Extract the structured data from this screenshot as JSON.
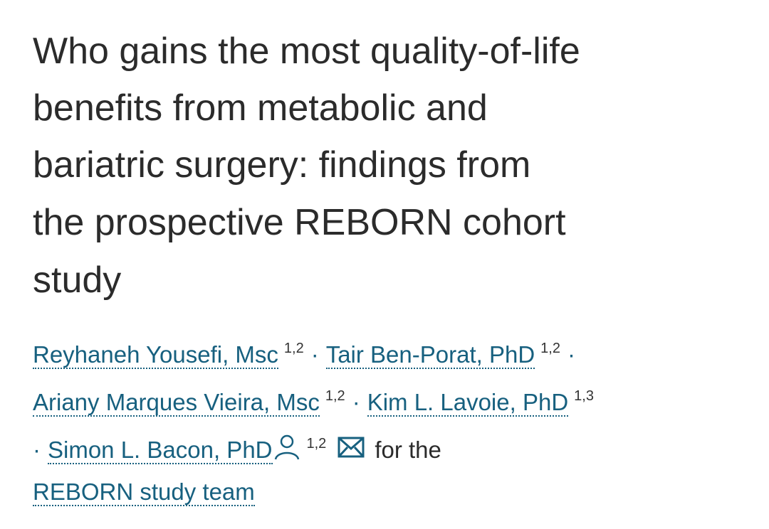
{
  "title_lines": [
    "Who gains the most quality-of-life",
    "benefits from metabolic and",
    "bariatric surgery: findings from",
    "the prospective REBORN cohort",
    "study"
  ],
  "authors": [
    {
      "name": "Reyhaneh Yousefi, Msc",
      "affiliations": "1,2"
    },
    {
      "name": "Tair Ben-Porat, PhD",
      "affiliations": "1,2"
    },
    {
      "name": "Ariany Marques Vieira, Msc",
      "affiliations": "1,2"
    },
    {
      "name": "Kim L. Lavoie, PhD",
      "affiliations": "1,3"
    },
    {
      "name": "Simon L. Bacon, PhD",
      "affiliations": "1,2"
    }
  ],
  "separator": "·",
  "group_prefix": "for the",
  "group": "REBORN study team"
}
